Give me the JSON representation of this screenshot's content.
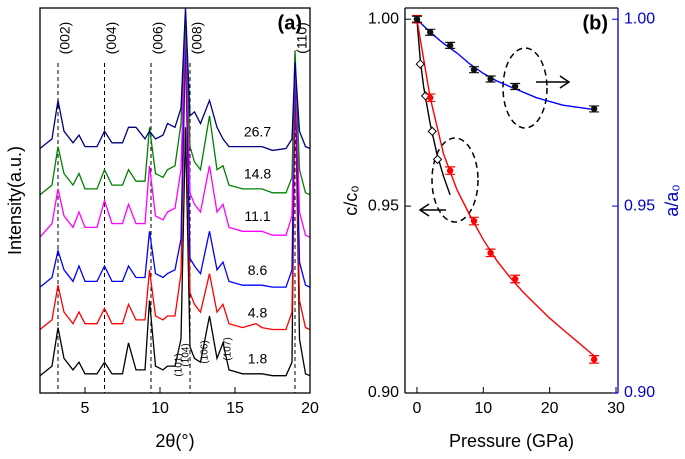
{
  "chart_data": [
    {
      "type": "line",
      "panel_label": "(a)",
      "xlabel": "2θ(°)",
      "ylabel": "Intensity(a.u.)",
      "xlim": [
        2,
        20
      ],
      "xticks": [
        5,
        10,
        15,
        20
      ],
      "ylim": [
        0,
        10
      ],
      "reference_lines": [
        {
          "x": 3.2,
          "label": "(002)"
        },
        {
          "x": 6.3,
          "label": "(004)"
        },
        {
          "x": 9.4,
          "label": "(006)"
        },
        {
          "x": 12.0,
          "label": "(008)"
        },
        {
          "x": 19.0,
          "label": "(110)"
        }
      ],
      "peak_labels": [
        "(101)",
        "(104)",
        "(106)",
        "(107)"
      ],
      "x": [
        2,
        2.8,
        3.2,
        3.6,
        4.2,
        4.6,
        5.0,
        5.8,
        6.3,
        6.8,
        7.5,
        7.9,
        8.4,
        9.0,
        9.3,
        9.7,
        10.2,
        10.5,
        11.0,
        11.4,
        11.7,
        12.0,
        12.3,
        12.7,
        13.3,
        13.8,
        14.2,
        14.6,
        15.5,
        16.4,
        16.8,
        17.5,
        18.4,
        18.8,
        19.0,
        19.3,
        19.7,
        20
      ],
      "series": [
        {
          "name": "1.8",
          "color": "#000000",
          "values": [
            0.45,
            0.7,
            1.7,
            0.9,
            0.6,
            0.8,
            0.5,
            0.5,
            0.8,
            0.5,
            0.5,
            1.3,
            0.6,
            0.6,
            2.4,
            0.7,
            0.6,
            0.7,
            0.7,
            1.4,
            6.9,
            1.2,
            0.9,
            0.8,
            2.0,
            0.9,
            1.3,
            0.6,
            0.5,
            0.5,
            0.5,
            0.45,
            0.45,
            0.8,
            8.4,
            1.4,
            0.5,
            0.45
          ]
        },
        {
          "name": "4.8",
          "color": "#ff0000",
          "values": [
            1.65,
            1.9,
            2.8,
            2.1,
            1.8,
            2.1,
            1.8,
            1.8,
            2.2,
            1.8,
            1.8,
            2.3,
            1.9,
            1.9,
            3.2,
            2.0,
            1.9,
            2.0,
            2.0,
            3.1,
            9.1,
            2.6,
            2.3,
            2.1,
            3.1,
            2.1,
            2.3,
            1.8,
            1.7,
            1.8,
            1.7,
            1.65,
            1.65,
            2.1,
            8.1,
            2.4,
            1.7,
            1.65
          ]
        },
        {
          "name": "8.6",
          "color": "#0000ff",
          "values": [
            2.75,
            3.0,
            3.7,
            3.2,
            2.9,
            3.3,
            2.9,
            2.9,
            3.3,
            2.9,
            2.9,
            3.3,
            3.0,
            3.0,
            4.2,
            3.1,
            3.0,
            3.1,
            3.2,
            4.0,
            9.5,
            3.5,
            3.3,
            3.1,
            4.2,
            3.2,
            3.4,
            2.9,
            2.8,
            2.8,
            2.8,
            2.75,
            2.75,
            3.2,
            8.6,
            3.4,
            2.8,
            2.75
          ]
        },
        {
          "name": "11.1",
          "color": "#ff00ff",
          "values": [
            4.05,
            4.4,
            5.3,
            4.6,
            4.3,
            4.7,
            4.3,
            4.3,
            5.0,
            4.4,
            4.4,
            4.9,
            4.4,
            4.4,
            5.9,
            4.6,
            4.5,
            4.7,
            4.8,
            5.8,
            9.7,
            5.2,
            4.9,
            4.7,
            5.9,
            4.7,
            4.9,
            4.3,
            4.2,
            4.2,
            4.2,
            4.1,
            4.1,
            4.6,
            8.8,
            4.7,
            4.1,
            4.05
          ]
        },
        {
          "name": "14.8",
          "color": "#008000",
          "values": [
            5.15,
            5.4,
            6.4,
            5.7,
            5.4,
            5.7,
            5.3,
            5.3,
            5.8,
            5.4,
            5.4,
            5.8,
            5.5,
            5.5,
            6.9,
            5.7,
            5.6,
            5.8,
            5.9,
            7.0,
            9.8,
            6.4,
            6.0,
            5.8,
            7.2,
            5.8,
            5.9,
            5.4,
            5.3,
            5.3,
            5.3,
            5.2,
            5.2,
            5.6,
            8.9,
            5.8,
            5.2,
            5.15
          ]
        },
        {
          "name": "26.7",
          "color": "#000080",
          "values": [
            6.35,
            6.6,
            7.6,
            6.8,
            6.5,
            6.7,
            6.4,
            6.4,
            6.8,
            6.5,
            6.5,
            6.9,
            6.9,
            6.6,
            6.8,
            6.6,
            6.7,
            7.0,
            6.9,
            7.4,
            10.0,
            7.2,
            7.3,
            7.0,
            7.6,
            6.9,
            6.6,
            6.4,
            6.4,
            6.4,
            6.4,
            6.3,
            6.35,
            6.6,
            8.6,
            6.8,
            6.4,
            6.35
          ]
        }
      ]
    },
    {
      "type": "scatter",
      "panel_label": "(b)",
      "xlabel": "Pressure (GPa)",
      "ylabel": "c/c₀",
      "y2label": "a/a₀",
      "y2color": "#0000cc",
      "xlim": [
        -1.8,
        30.3
      ],
      "xticks": [
        0,
        10,
        20,
        30
      ],
      "ylim": [
        0.9,
        1.003
      ],
      "yticks": [
        {
          "value": 0.9,
          "label": "0.90"
        },
        0.95,
        {
          "value": 1,
          "label": "1.00"
        }
      ],
      "y2lim": [
        0.9,
        1.003
      ],
      "y2ticks": [
        {
          "value": 0.9,
          "label": "0.90"
        },
        0.95,
        {
          "value": 1,
          "label": "1.00"
        }
      ],
      "series": [
        {
          "type": "line",
          "color": "#000000",
          "x": [
            0,
            0.5,
            1,
            2,
            3,
            4,
            5
          ],
          "values": [
            1.0,
            0.989,
            0.982,
            0.972,
            0.964,
            0.958,
            0.953
          ]
        },
        {
          "type": "line",
          "color": "#ff0000",
          "x": [
            0,
            2,
            4,
            6,
            8,
            10,
            12,
            14,
            16,
            18,
            20,
            22,
            24,
            26,
            27
          ],
          "values": [
            1.0,
            0.979,
            0.964,
            0.9545,
            0.9475,
            0.941,
            0.9355,
            0.931,
            0.927,
            0.9235,
            0.92,
            0.917,
            0.914,
            0.911,
            0.9095
          ]
        },
        {
          "type": "line",
          "color": "#0000ff",
          "axis": "y2",
          "x": [
            0,
            2,
            4,
            6,
            8,
            10,
            12,
            14,
            16,
            18,
            20,
            22,
            24,
            26,
            27
          ],
          "values": [
            1.0,
            0.9965,
            0.9935,
            0.991,
            0.988,
            0.9855,
            0.9835,
            0.982,
            0.9805,
            0.979,
            0.978,
            0.977,
            0.9765,
            0.976,
            0.9758
          ]
        },
        {
          "type": "scatter",
          "marker": "diamond",
          "color": "#000000",
          "x": [
            0.5,
            1.3,
            2.3,
            3.1
          ],
          "values": [
            0.988,
            0.9795,
            0.97,
            0.9625
          ]
        },
        {
          "type": "scatter",
          "marker": "circle",
          "color": "#ff0000",
          "x": [
            0,
            2,
            5,
            8.6,
            11.1,
            14.8,
            26.7
          ],
          "values": [
            1.0,
            0.979,
            0.9595,
            0.946,
            0.9375,
            0.9305,
            0.909
          ],
          "errors": [
            0.001,
            0.001,
            0.001,
            0.001,
            0.001,
            0.001,
            0.001
          ]
        },
        {
          "type": "scatter",
          "marker": "circle",
          "color": "#111111",
          "axis": "y2",
          "x": [
            0,
            2,
            5,
            8.6,
            11.1,
            14.8,
            26.7
          ],
          "values": [
            1.0,
            0.9965,
            0.993,
            0.9865,
            0.984,
            0.982,
            0.976
          ],
          "errors": [
            0.0008,
            0.0008,
            0.0008,
            0.0008,
            0.0008,
            0.0008,
            0.0008
          ]
        }
      ]
    }
  ]
}
